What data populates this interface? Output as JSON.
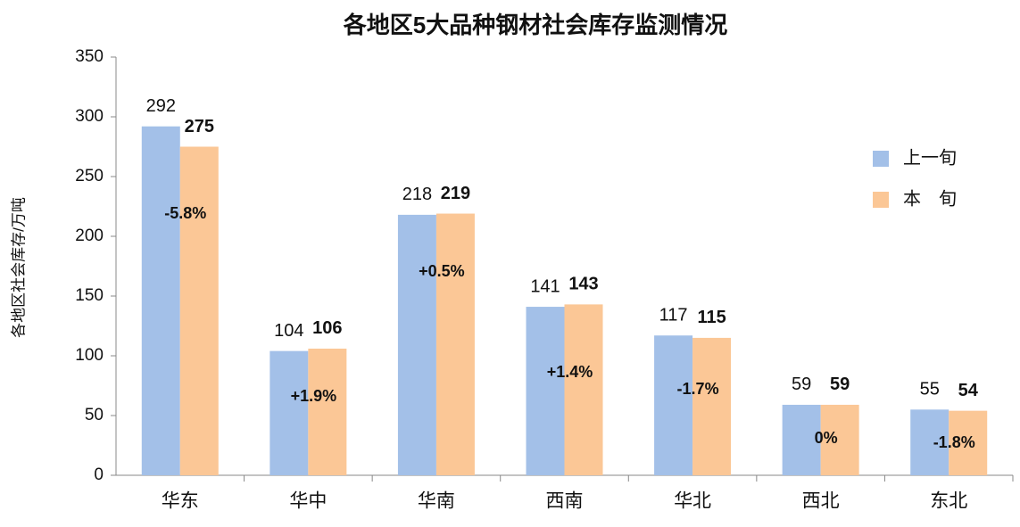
{
  "chart_data": {
    "type": "bar",
    "title": "各地区5大品种钢材社会库存监测情况",
    "y_label": "各地区社会库存/万吨",
    "categories": [
      "华东",
      "华中",
      "华南",
      "西南",
      "华北",
      "西北",
      "东北"
    ],
    "series": [
      {
        "name": "上一旬",
        "color": "#a3c0e8",
        "values": [
          292,
          104,
          218,
          141,
          117,
          59,
          55
        ]
      },
      {
        "name": "本　旬",
        "color": "#fbc796",
        "values": [
          275,
          106,
          219,
          143,
          115,
          59,
          54
        ]
      }
    ],
    "annotations": [
      "-5.8%",
      "+1.9%",
      "+0.5%",
      "+1.4%",
      "-1.7%",
      "0%",
      "-1.8%"
    ],
    "ylim": [
      0,
      350
    ],
    "yticks": [
      0,
      50,
      100,
      150,
      200,
      250,
      300,
      350
    ],
    "grid": false,
    "legend": "right"
  }
}
